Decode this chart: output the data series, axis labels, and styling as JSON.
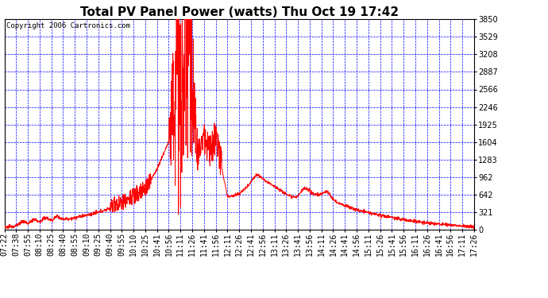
{
  "title": "Total PV Panel Power (watts) Thu Oct 19 17:42",
  "copyright": "Copyright 2006 Cartronics.com",
  "background_color": "#ffffff",
  "plot_background": "#ffffff",
  "line_color": "#ff0000",
  "grid_color": "#0000ff",
  "border_color": "#000000",
  "y_min": 0.0,
  "y_max": 3849.6,
  "y_ticks": [
    0.0,
    320.8,
    641.6,
    962.4,
    1283.2,
    1604.0,
    1924.8,
    2245.6,
    2566.4,
    2887.2,
    3208.0,
    3528.8,
    3849.6
  ],
  "x_tick_labels": [
    "07:22",
    "07:38",
    "07:55",
    "08:10",
    "08:25",
    "08:40",
    "08:55",
    "09:10",
    "09:25",
    "09:40",
    "09:55",
    "10:10",
    "10:25",
    "10:41",
    "10:56",
    "11:11",
    "11:26",
    "11:41",
    "11:56",
    "12:11",
    "12:26",
    "12:41",
    "12:56",
    "13:11",
    "13:26",
    "13:41",
    "13:56",
    "14:11",
    "14:26",
    "14:41",
    "14:56",
    "15:11",
    "15:26",
    "15:41",
    "15:56",
    "16:11",
    "16:26",
    "16:41",
    "16:56",
    "17:11",
    "17:26"
  ],
  "title_fontsize": 11,
  "tick_fontsize": 7,
  "copyright_fontsize": 6.5
}
